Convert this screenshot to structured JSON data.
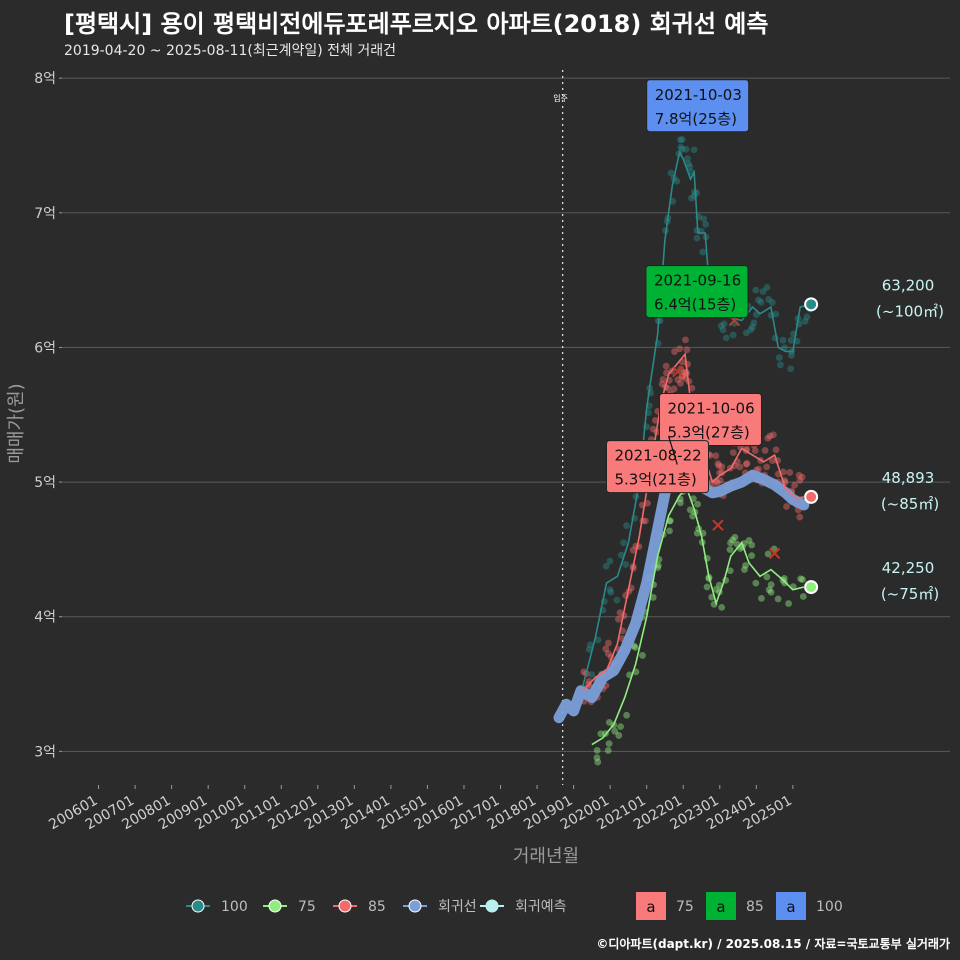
{
  "title": "[평택시] 용이 평택비전에듀포레푸르지오 아파트(2018) 회귀선 예측",
  "subtitle": "2019-04-20 ~ 2025-08-11(최근계약일) 전체 거래건",
  "credit": "©디아파트(dapt.kr) / 2025.08.15 / 자료=국토교통부 실거래가",
  "colors": {
    "s100": "#2a8a8a",
    "s75": "#90ee80",
    "s85": "#f26b6b",
    "regression": "#7b9fd8",
    "forecast": "#b8f0f0",
    "label75": "#f87a7a",
    "label85": "#00b233",
    "label100": "#5c8ff0"
  },
  "chart_data": {
    "type": "line",
    "xlabel": "거래년월",
    "ylabel": "매매가(원)",
    "x_ticks": [
      "200601",
      "200701",
      "200801",
      "200901",
      "201001",
      "201101",
      "201201",
      "201301",
      "201401",
      "201501",
      "201601",
      "201701",
      "201801",
      "201901",
      "202001",
      "202101",
      "202201",
      "202301",
      "202401",
      "202501"
    ],
    "y_ticks": [
      {
        "value": 3,
        "label": "3억"
      },
      {
        "value": 4,
        "label": "4억"
      },
      {
        "value": 5,
        "label": "5억"
      },
      {
        "value": 6,
        "label": "6억"
      },
      {
        "value": 7,
        "label": "7억"
      },
      {
        "value": 8,
        "label": "8억"
      }
    ],
    "xlim": [
      2005.0,
      2029.3
    ],
    "ylim": [
      2.75,
      8.12
    ],
    "move_in": {
      "x": 2018.7,
      "label": "입주"
    },
    "series": [
      {
        "key": "s100",
        "name": "100",
        "points": [
          [
            2019.25,
            3.48
          ],
          [
            2019.6,
            3.85
          ],
          [
            2019.9,
            4.25
          ],
          [
            2020.2,
            4.3
          ],
          [
            2020.5,
            4.55
          ],
          [
            2020.8,
            5.0
          ],
          [
            2021.0,
            5.55
          ],
          [
            2021.3,
            6.1
          ],
          [
            2021.5,
            6.8
          ],
          [
            2021.7,
            7.2
          ],
          [
            2021.9,
            7.45
          ],
          [
            2022.0,
            7.4
          ],
          [
            2022.2,
            7.25
          ],
          [
            2022.3,
            7.3
          ],
          [
            2022.4,
            6.85
          ],
          [
            2022.6,
            6.85
          ],
          [
            2022.7,
            6.5
          ],
          [
            2023.0,
            6.28
          ],
          [
            2023.3,
            6.22
          ],
          [
            2023.6,
            6.2
          ],
          [
            2023.9,
            6.3
          ],
          [
            2024.1,
            6.25
          ],
          [
            2024.4,
            6.3
          ],
          [
            2024.6,
            6.0
          ],
          [
            2024.8,
            5.97
          ],
          [
            2025.0,
            5.97
          ],
          [
            2025.2,
            6.3
          ],
          [
            2025.5,
            6.32
          ]
        ]
      },
      {
        "key": "s75",
        "name": "75",
        "points": [
          [
            2019.5,
            3.05
          ],
          [
            2019.8,
            3.1
          ],
          [
            2020.1,
            3.2
          ],
          [
            2020.4,
            3.4
          ],
          [
            2020.7,
            3.65
          ],
          [
            2021.0,
            4.0
          ],
          [
            2021.3,
            4.45
          ],
          [
            2021.6,
            4.75
          ],
          [
            2021.9,
            4.9
          ],
          [
            2022.1,
            4.95
          ],
          [
            2022.3,
            4.8
          ],
          [
            2022.5,
            4.6
          ],
          [
            2022.7,
            4.3
          ],
          [
            2022.9,
            4.1
          ],
          [
            2023.1,
            4.25
          ],
          [
            2023.3,
            4.45
          ],
          [
            2023.6,
            4.55
          ],
          [
            2023.8,
            4.4
          ],
          [
            2024.1,
            4.3
          ],
          [
            2024.4,
            4.35
          ],
          [
            2024.7,
            4.28
          ],
          [
            2025.0,
            4.2
          ],
          [
            2025.3,
            4.22
          ]
        ]
      },
      {
        "key": "s85",
        "name": "85",
        "points": [
          [
            2019.25,
            3.45
          ],
          [
            2019.6,
            3.55
          ],
          [
            2019.9,
            3.6
          ],
          [
            2020.2,
            3.8
          ],
          [
            2020.5,
            4.2
          ],
          [
            2020.8,
            4.6
          ],
          [
            2021.1,
            5.1
          ],
          [
            2021.4,
            5.6
          ],
          [
            2021.6,
            5.8
          ],
          [
            2021.9,
            5.9
          ],
          [
            2022.05,
            5.95
          ],
          [
            2022.2,
            5.6
          ],
          [
            2022.5,
            5.25
          ],
          [
            2022.8,
            5.0
          ],
          [
            2023.0,
            5.05
          ],
          [
            2023.3,
            5.1
          ],
          [
            2023.6,
            5.25
          ],
          [
            2023.9,
            5.2
          ],
          [
            2024.2,
            5.15
          ],
          [
            2024.5,
            5.2
          ],
          [
            2024.8,
            4.95
          ],
          [
            2025.1,
            4.88
          ],
          [
            2025.3,
            4.89
          ]
        ]
      },
      {
        "key": "regression",
        "name": "회귀선",
        "points": [
          [
            2018.6,
            3.25
          ],
          [
            2018.8,
            3.35
          ],
          [
            2019.0,
            3.3
          ],
          [
            2019.2,
            3.45
          ],
          [
            2019.5,
            3.4
          ],
          [
            2019.8,
            3.55
          ],
          [
            2020.1,
            3.6
          ],
          [
            2020.4,
            3.75
          ],
          [
            2020.7,
            3.95
          ],
          [
            2021.0,
            4.25
          ],
          [
            2021.3,
            4.65
          ],
          [
            2021.6,
            5.05
          ],
          [
            2021.8,
            5.35
          ],
          [
            2022.0,
            5.5
          ],
          [
            2022.2,
            5.45
          ],
          [
            2022.4,
            5.2
          ],
          [
            2022.6,
            4.95
          ],
          [
            2022.8,
            4.92
          ],
          [
            2023.0,
            4.93
          ],
          [
            2023.3,
            4.97
          ],
          [
            2023.6,
            5.0
          ],
          [
            2023.9,
            5.05
          ],
          [
            2024.2,
            5.02
          ],
          [
            2024.5,
            4.98
          ],
          [
            2024.8,
            4.92
          ],
          [
            2025.0,
            4.87
          ],
          [
            2025.3,
            4.83
          ]
        ]
      }
    ],
    "endpoints": [
      {
        "key": "s100",
        "x": 2025.5,
        "y": 6.32,
        "price": "63,200",
        "area": "(~100㎡)"
      },
      {
        "key": "s85",
        "x": 2025.5,
        "y": 4.89,
        "price": "48,893",
        "area": "(~85㎡)"
      },
      {
        "key": "s75",
        "x": 2025.5,
        "y": 4.22,
        "price": "42,250",
        "area": "(~75㎡)"
      }
    ],
    "annotations": [
      {
        "key": "label100",
        "x": 2021.0,
        "y": 7.78,
        "line1": "2021-10-03",
        "line2": "7.8억(25층)"
      },
      {
        "key": "label85",
        "x": 2020.98,
        "y": 6.4,
        "line1": "2021-09-16",
        "line2": "6.4억(15층)"
      },
      {
        "key": "label75",
        "x": 2021.35,
        "y": 5.45,
        "line1": "2021-10-06",
        "line2": "5.3억(27층)"
      },
      {
        "key": "label75",
        "x": 2019.9,
        "y": 5.1,
        "line1": "2021-08-22",
        "line2": "5.3억(21층)"
      }
    ]
  },
  "legend": {
    "items": [
      {
        "key": "s100",
        "label": "100"
      },
      {
        "key": "s75",
        "label": "75"
      },
      {
        "key": "s85",
        "label": "85"
      },
      {
        "key": "regression",
        "label": "회귀선"
      },
      {
        "key": "forecast",
        "label": "회귀예측"
      }
    ],
    "label_items": [
      {
        "key": "label75",
        "glyph": "a",
        "label": "75"
      },
      {
        "key": "label85",
        "glyph": "a",
        "label": "85"
      },
      {
        "key": "label100",
        "glyph": "a",
        "label": "100"
      }
    ]
  }
}
